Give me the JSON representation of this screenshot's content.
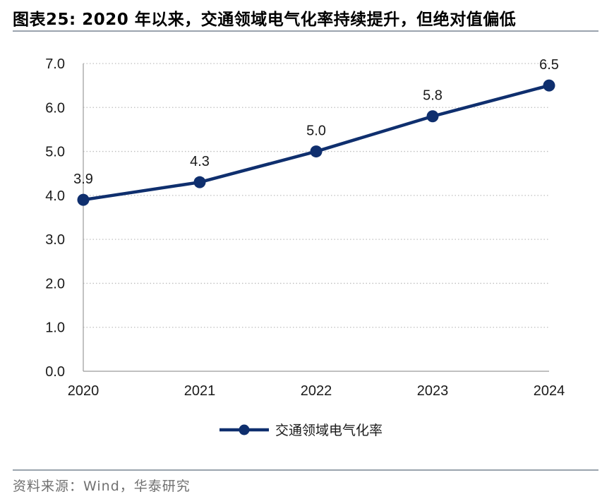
{
  "figure": {
    "title": "图表25:  2020 年以来，交通领域电气化率持续提升，但绝对值偏低",
    "source": "资料来源：Wind，华泰研究"
  },
  "colors": {
    "series": "#0f2f6e",
    "grid": "#bfbfbf",
    "axis": "#9a9a9a",
    "rule": "#9aa3ad"
  },
  "chart_data": {
    "type": "line",
    "title": "",
    "xlabel": "",
    "ylabel": "",
    "categories": [
      "2020",
      "2021",
      "2022",
      "2023",
      "2024"
    ],
    "series": [
      {
        "name": "交通领域电气化率",
        "values": [
          3.9,
          4.3,
          5.0,
          5.8,
          6.5
        ],
        "labels": [
          "3.9",
          "4.3",
          "5.0",
          "5.8",
          "6.5"
        ]
      }
    ],
    "ylim": [
      0,
      7
    ],
    "yticks": [
      "0.0",
      "1.0",
      "2.0",
      "3.0",
      "4.0",
      "5.0",
      "6.0",
      "7.0"
    ],
    "grid": "horizontal dotted",
    "legend": "bottom-center",
    "markers": "filled circles",
    "data_labels": "above points"
  }
}
